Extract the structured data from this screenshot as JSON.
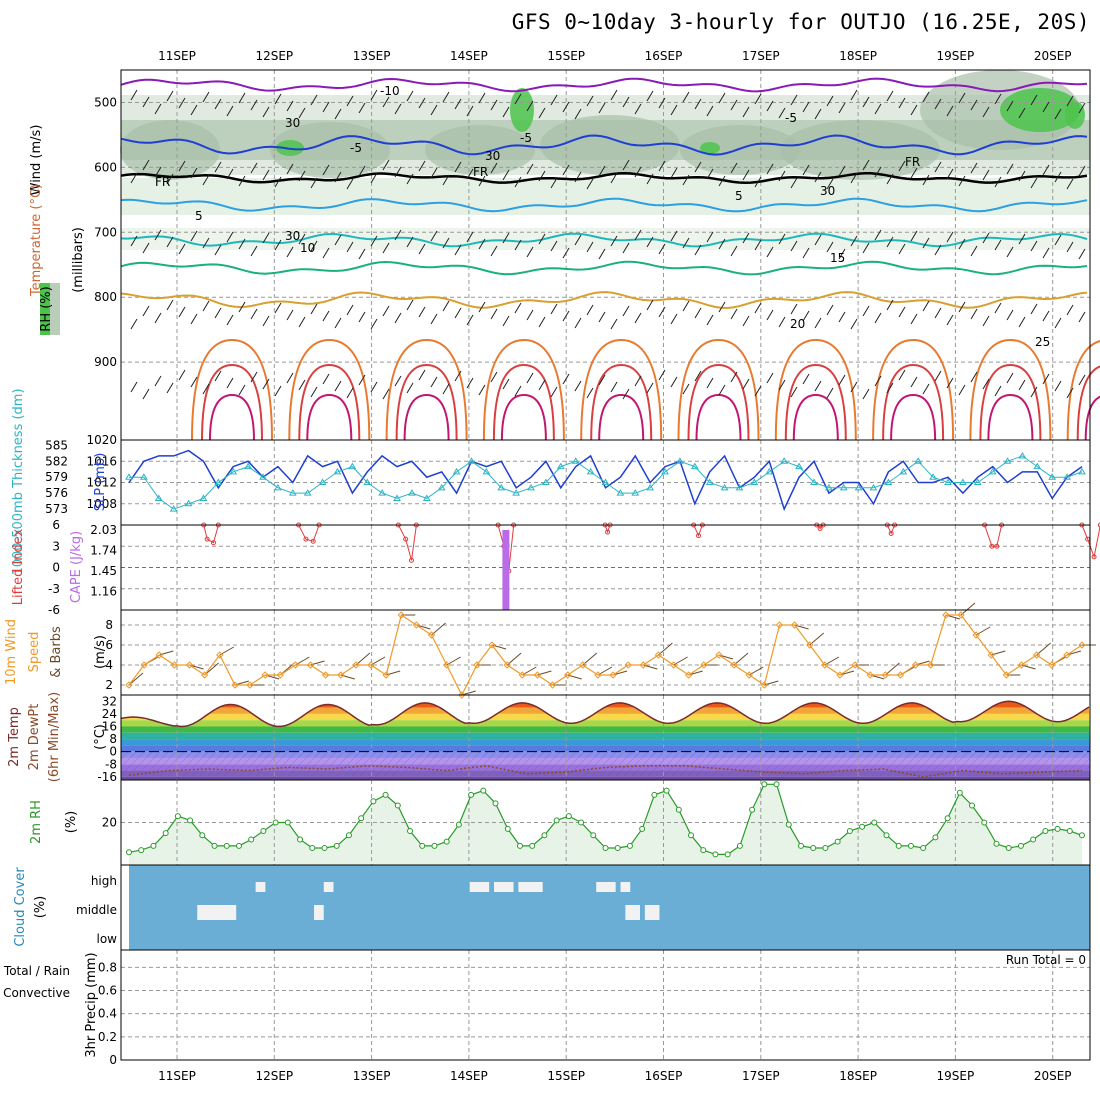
{
  "title": "GFS 0~10day 3-hourly for OUTJO (16.25E, 20S)",
  "dates": [
    "11SEP",
    "12SEP",
    "13SEP",
    "14SEP",
    "15SEP",
    "16SEP",
    "17SEP",
    "18SEP",
    "19SEP",
    "20SEP"
  ],
  "colors": {
    "pressure_blue": "#1f3fd0",
    "thickness_cyan": "#2cb5c5",
    "li_red": "#e03c3c",
    "cape_purple": "#b96be8",
    "wind_orange": "#f09a2a",
    "rh_green": "#2a9a2a",
    "cloud_blue": "#6aaed6"
  },
  "chart_data": [
    {
      "type": "contour",
      "panel": "upper_air",
      "ylabel_parts": [
        "Wind (m/s)",
        "Temperature (°C)",
        "(millibars)"
      ],
      "y_ticks": [
        500,
        600,
        700,
        800,
        900
      ],
      "ylim": [
        450,
        1020
      ],
      "inline_labels": [
        "-10",
        "-5",
        "-5",
        "-5",
        "FR",
        "FR",
        "FR",
        "5",
        "5",
        "10",
        "15",
        "20",
        "25",
        "30",
        "30",
        "30",
        "30"
      ],
      "legend_label": "RH (%)"
    },
    {
      "type": "line",
      "panel": "thickness_slp",
      "ylabel_left": "1000-500mb Thickness (dm)",
      "ylabel_right": "SLP (mb)",
      "y_ticks_left": [
        573,
        576,
        579,
        582,
        585
      ],
      "y_ticks_right": [
        1008,
        1012,
        1016,
        1020
      ],
      "series": [
        {
          "name": "SLP (mb)",
          "values": [
            1012,
            1016,
            1017,
            1017,
            1018,
            1016,
            1011,
            1015,
            1016,
            1013,
            1015,
            1012,
            1017,
            1015,
            1016,
            1010,
            1014,
            1017,
            1015,
            1016,
            1013,
            1014,
            1010,
            1016,
            1015,
            1016,
            1011,
            1013,
            1016,
            1011,
            1015,
            1017,
            1011,
            1013,
            1017,
            1012,
            1015,
            1016,
            1008,
            1014,
            1017,
            1011,
            1013,
            1016,
            1007,
            1013,
            1016,
            1010,
            1012,
            1012,
            1008,
            1014,
            1016,
            1012,
            1012,
            1013,
            1010,
            1013,
            1015,
            1012,
            1014,
            1014,
            1009,
            1013,
            1015
          ]
        },
        {
          "name": "1000-500mb Thickness (dm)",
          "values": [
            579,
            579,
            575,
            573,
            574,
            575,
            578,
            580,
            581,
            579,
            577,
            576,
            576,
            578,
            580,
            581,
            578,
            576,
            575,
            576,
            575,
            577,
            580,
            582,
            580,
            577,
            576,
            577,
            578,
            581,
            582,
            580,
            578,
            576,
            576,
            577,
            580,
            582,
            581,
            578,
            577,
            577,
            578,
            580,
            582,
            581,
            578,
            577,
            577,
            577,
            577,
            578,
            580,
            582,
            579,
            578,
            578,
            578,
            580,
            582,
            583,
            581,
            579,
            579,
            580
          ]
        }
      ]
    },
    {
      "type": "line",
      "panel": "stability",
      "ylabel_left": "Lifted Index",
      "ylabel_right": "CAPE (J/kg)",
      "y_ticks_left": [
        "6",
        "3",
        "0",
        "-3",
        "-6"
      ],
      "y_ticks_right": [
        "1.16",
        "1.45",
        "1.74",
        "2.03"
      ],
      "series": [
        {
          "name": "Lifted Index",
          "segments": [
            [
              [
                1.55,
                6
              ],
              [
                1.62,
                4
              ],
              [
                1.75,
                3.5
              ],
              [
                1.85,
                6
              ]
            ],
            [
              [
                3.5,
                6
              ],
              [
                3.65,
                4
              ],
              [
                3.8,
                3.7
              ],
              [
                3.92,
                6
              ]
            ],
            [
              [
                5.55,
                6
              ],
              [
                5.7,
                4
              ],
              [
                5.82,
                1
              ],
              [
                5.92,
                6
              ]
            ],
            [
              [
                7.6,
                6
              ],
              [
                7.72,
                3
              ],
              [
                7.82,
                -0.5
              ],
              [
                7.92,
                6
              ]
            ],
            [
              [
                9.8,
                6
              ],
              [
                9.85,
                5
              ],
              [
                9.9,
                6
              ]
            ],
            [
              [
                11.62,
                6
              ],
              [
                11.72,
                4.5
              ],
              [
                11.8,
                6
              ]
            ],
            [
              [
                14.15,
                6
              ],
              [
                14.22,
                5.5
              ],
              [
                14.28,
                6
              ]
            ],
            [
              [
                15.6,
                6
              ],
              [
                15.68,
                4.8
              ],
              [
                15.75,
                6
              ]
            ],
            [
              [
                17.6,
                6
              ],
              [
                17.75,
                3
              ],
              [
                17.85,
                3
              ],
              [
                17.95,
                6
              ]
            ],
            [
              [
                19.6,
                6
              ],
              [
                19.72,
                4
              ],
              [
                19.85,
                1.5
              ],
              [
                19.98,
                6
              ]
            ]
          ]
        },
        {
          "name": "CAPE (J/kg)",
          "bars": [
            {
              "x": 7.75,
              "value": 2.03
            }
          ]
        }
      ]
    },
    {
      "type": "line",
      "panel": "wind10m",
      "ylabel": "10m Wind Speed & Barbs (m/s)",
      "y_ticks": [
        2,
        4,
        6,
        8
      ],
      "series": [
        {
          "name": "Speed",
          "values": [
            2,
            4,
            5,
            4,
            4,
            3,
            5,
            2,
            2,
            3,
            3,
            4,
            4,
            3,
            3,
            4,
            4,
            3,
            9,
            8,
            7,
            4,
            1,
            4,
            6,
            4,
            3,
            3,
            2,
            3,
            4,
            3,
            3,
            4,
            4,
            5,
            4,
            3,
            4,
            5,
            4,
            3,
            2,
            8,
            8,
            6,
            4,
            3,
            4,
            3,
            3,
            3,
            4,
            4,
            9,
            9,
            7,
            5,
            3,
            4,
            5,
            4,
            5,
            6
          ]
        }
      ]
    },
    {
      "type": "area",
      "panel": "temp2m",
      "ylabel": "2m Temp 2m DewPt (6hr Min/Max) (°C)",
      "y_ticks": [
        "32",
        "24",
        "16",
        "8",
        "0",
        "-8",
        "-16"
      ],
      "series": [
        {
          "name": "2m Temp",
          "min": [
            16,
            16,
            16,
            17,
            18,
            18,
            18,
            18,
            18,
            19,
            19
          ],
          "max": [
            22,
            30,
            30,
            31,
            31,
            31,
            31,
            31,
            31,
            32,
            32
          ]
        },
        {
          "name": "2m DewPt",
          "values": [
            -15,
            -12,
            -11,
            -12,
            -10,
            -11,
            -9,
            -10,
            -12,
            -9,
            -14,
            -13,
            -10,
            -9,
            -9,
            -11,
            -13,
            -14,
            -12,
            -11,
            -16,
            -12,
            -14,
            -13,
            -12
          ]
        }
      ]
    },
    {
      "type": "area",
      "panel": "rh2m",
      "ylabel": "2m RH",
      "y_ticks": [
        20
      ],
      "yunit": "(%)",
      "series": [
        {
          "name": "2m RH",
          "values": [
            6,
            7,
            9,
            15,
            23,
            21,
            14,
            9,
            9,
            9,
            12,
            16,
            20,
            20,
            12,
            8,
            8,
            9,
            14,
            22,
            30,
            33,
            28,
            16,
            9,
            9,
            11,
            19,
            33,
            35,
            29,
            17,
            9,
            9,
            14,
            21,
            23,
            20,
            14,
            8,
            8,
            9,
            17,
            33,
            35,
            26,
            14,
            7,
            5,
            5,
            9,
            26,
            38,
            38,
            19,
            9,
            8,
            8,
            11,
            16,
            18,
            20,
            14,
            9,
            9,
            8,
            13,
            22,
            34,
            28,
            20,
            10,
            8,
            9,
            12,
            16,
            17,
            16,
            14
          ]
        }
      ]
    },
    {
      "type": "bar",
      "panel": "cloud",
      "ylabel": "Cloud Cover (%)",
      "levels": [
        "high",
        "middle",
        "low"
      ],
      "blocks": [
        {
          "level": "high",
          "x": [
            2.0,
            2.2
          ]
        },
        {
          "level": "high",
          "x": [
            3.4,
            3.6
          ]
        },
        {
          "level": "middle",
          "x": [
            0.8,
            1.6
          ]
        },
        {
          "level": "middle",
          "x": [
            3.2,
            3.4
          ]
        },
        {
          "level": "high",
          "x": [
            6.4,
            6.8
          ]
        },
        {
          "level": "high",
          "x": [
            6.9,
            7.3
          ]
        },
        {
          "level": "high",
          "x": [
            7.4,
            7.9
          ]
        },
        {
          "level": "high",
          "x": [
            9.0,
            9.4
          ]
        },
        {
          "level": "high",
          "x": [
            9.5,
            9.7
          ]
        },
        {
          "level": "middle",
          "x": [
            9.6,
            9.9
          ]
        },
        {
          "level": "middle",
          "x": [
            10.0,
            10.3
          ]
        }
      ]
    },
    {
      "type": "bar",
      "panel": "precip",
      "ylabel_parts": [
        "Total / Rain",
        "Convective",
        "3hr Precip (mm)"
      ],
      "y_ticks": [
        0,
        0.2,
        0.4,
        0.6,
        0.8
      ],
      "annotation": "Run Total = 0",
      "values": []
    }
  ]
}
